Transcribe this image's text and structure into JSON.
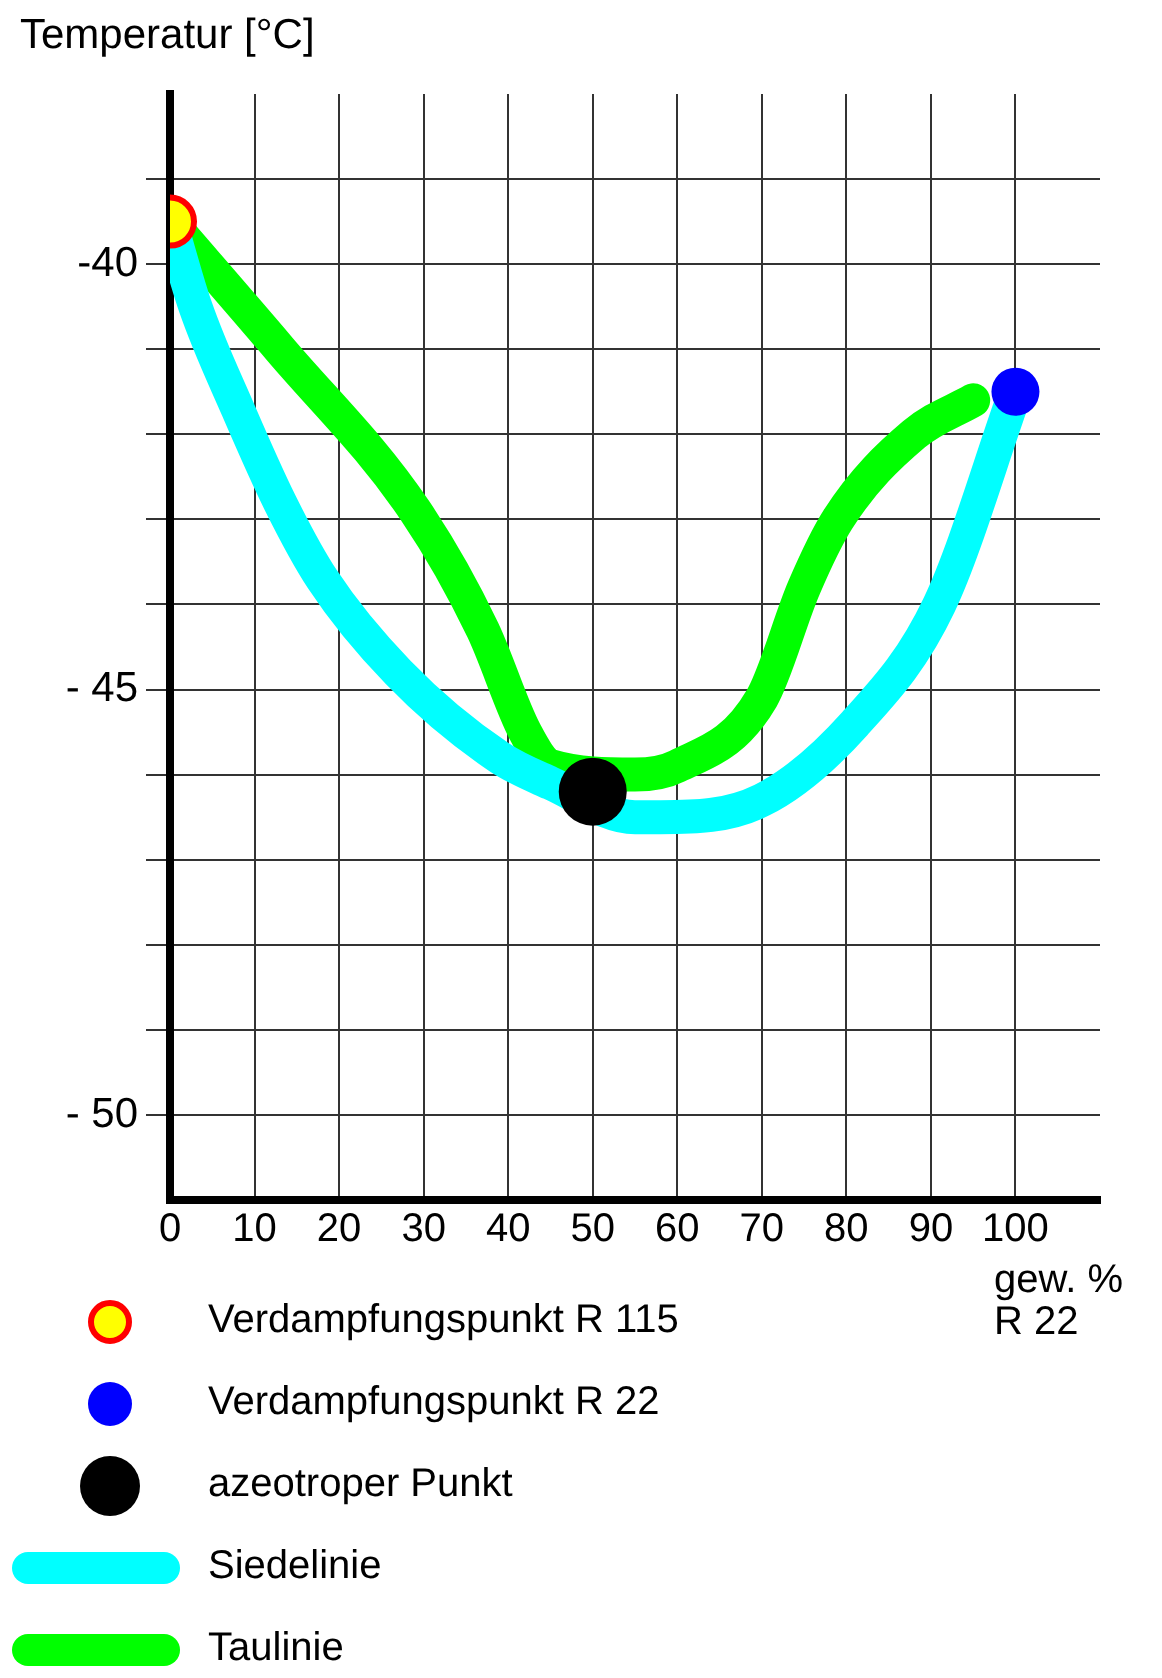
{
  "chart_data": {
    "type": "line",
    "ylabel": "Temperatur [°C]",
    "xlabel": "gew. %\nR 22",
    "xlim": [
      0,
      110
    ],
    "xticks": [
      0,
      10,
      20,
      30,
      40,
      50,
      60,
      70,
      80,
      90,
      100
    ],
    "ylim": [
      -51,
      -38
    ],
    "yticks": [
      {
        "value": -39,
        "label": null
      },
      -40,
      {
        "value": -41,
        "label": null
      },
      {
        "value": -42,
        "label": null
      },
      {
        "value": -43,
        "label": null
      },
      {
        "value": -44,
        "label": null
      },
      {
        "value": -45,
        "label": "- 45"
      },
      {
        "value": -46,
        "label": null
      },
      {
        "value": -47,
        "label": null
      },
      {
        "value": -48,
        "label": null
      },
      {
        "value": -49,
        "label": null
      },
      {
        "value": -50,
        "label": "- 50"
      }
    ],
    "grid": true,
    "legend": "bottom",
    "marker": "circle",
    "series": [
      {
        "name": "Siedelinie",
        "type": "line",
        "marker": "none",
        "color": "#00ffff",
        "x": [
          0,
          3,
          8,
          13,
          18,
          27,
          39,
          45,
          55,
          58,
          70,
          81,
          91,
          100
        ],
        "values": [
          -39.5,
          -40.5,
          -41.7,
          -42.8,
          -43.7,
          -44.8,
          -45.8,
          -46.1,
          -46.5,
          -46.5,
          -46.3,
          -45.4,
          -44,
          -41.5
        ]
      },
      {
        "name": "Taulinie",
        "type": "line",
        "marker": "none",
        "color": "#00ff00",
        "x": [
          0,
          13,
          29,
          37,
          42,
          45,
          55,
          60,
          70,
          75,
          79,
          88,
          95
        ],
        "values": [
          -39.5,
          -41,
          -42.9,
          -44.3,
          -45.5,
          -45.9,
          -46.0,
          -45.9,
          -45.1,
          -43.8,
          -43,
          -42,
          -41.6
        ]
      },
      {
        "name": "Verdampfungspunkt R 115",
        "type": "scatter",
        "color": "#ffff00",
        "x": [
          0
        ],
        "values": [
          -39.5
        ]
      },
      {
        "name": "Verdampfungspunkt R 22",
        "type": "scatter",
        "color": "#0000ff",
        "x": [
          100
        ],
        "values": [
          -41.5
        ]
      },
      {
        "name": "azeotroper Punkt",
        "type": "scatter",
        "color": "#000000",
        "x": [
          50
        ],
        "values": [
          -46.2
        ]
      }
    ]
  }
}
